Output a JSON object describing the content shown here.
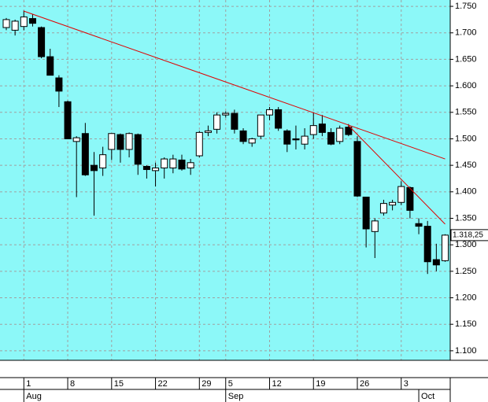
{
  "chart_data": {
    "type": "candlestick",
    "categories": [
      null,
      null,
      "1",
      null,
      null,
      null,
      null,
      "8",
      null,
      null,
      null,
      null,
      "15",
      null,
      null,
      null,
      null,
      "22",
      null,
      null,
      null,
      null,
      "29",
      null,
      null,
      "5",
      null,
      null,
      null,
      null,
      "12",
      null,
      null,
      null,
      null,
      "19",
      null,
      null,
      null,
      null,
      "26",
      null,
      null,
      null,
      null,
      "3",
      null,
      null,
      null,
      null,
      null
    ],
    "months": [
      {
        "label": "Aug",
        "start": 2
      },
      {
        "label": "Sep",
        "start": 25
      },
      {
        "label": "Oct",
        "start": 47
      }
    ],
    "series": [
      {
        "open": [
          1710,
          1705,
          1712,
          1727,
          1710,
          1655,
          1615,
          1570,
          1495,
          1510,
          1450,
          1445,
          1480,
          1508,
          1480,
          1508,
          1448,
          1440,
          1445,
          1445,
          1460,
          1445,
          1468,
          1512,
          1518,
          1545,
          1548,
          1515,
          1492,
          1505,
          1545,
          1555,
          1515,
          1500,
          1490,
          1508,
          1528,
          1512,
          1495,
          1522,
          1495,
          1390,
          1325,
          1360,
          1375,
          1380,
          1408,
          1340,
          1335,
          1272,
          1270
        ],
        "high": [
          1728,
          1725,
          1742,
          1735,
          1712,
          1670,
          1620,
          1572,
          1505,
          1530,
          1475,
          1485,
          1510,
          1510,
          1512,
          1510,
          1450,
          1455,
          1465,
          1470,
          1470,
          1462,
          1515,
          1525,
          1550,
          1552,
          1555,
          1520,
          1502,
          1545,
          1560,
          1560,
          1518,
          1525,
          1520,
          1550,
          1545,
          1520,
          1525,
          1528,
          1505,
          1390,
          1350,
          1385,
          1385,
          1420,
          1410,
          1350,
          1345,
          1302,
          1320
        ],
        "low": [
          1705,
          1695,
          1705,
          1712,
          1652,
          1620,
          1560,
          1500,
          1390,
          1430,
          1355,
          1430,
          1460,
          1455,
          1465,
          1432,
          1425,
          1410,
          1425,
          1435,
          1440,
          1432,
          1465,
          1505,
          1510,
          1540,
          1510,
          1490,
          1485,
          1500,
          1535,
          1515,
          1475,
          1480,
          1480,
          1500,
          1505,
          1488,
          1490,
          1505,
          1390,
          1295,
          1275,
          1355,
          1365,
          1375,
          1350,
          1320,
          1245,
          1250,
          1268
        ],
        "close": [
          1725,
          1722,
          1730,
          1718,
          1655,
          1620,
          1590,
          1500,
          1502,
          1432,
          1440,
          1470,
          1510,
          1480,
          1510,
          1452,
          1442,
          1445,
          1462,
          1462,
          1443,
          1455,
          1512,
          1515,
          1545,
          1548,
          1518,
          1495,
          1500,
          1545,
          1555,
          1520,
          1490,
          1498,
          1505,
          1525,
          1512,
          1490,
          1520,
          1508,
          1392,
          1330,
          1345,
          1378,
          1380,
          1410,
          1365,
          1335,
          1268,
          1262,
          1318.25
        ]
      }
    ],
    "trendlines": [
      {
        "x": [
          2,
          50
        ],
        "values": [
          1741,
          1462
        ]
      },
      {
        "x": [
          39,
          50
        ],
        "values": [
          1525,
          1339
        ]
      }
    ],
    "trendline_color": "#e00000",
    "last_value": {
      "value": 1318.25,
      "label": "1.318,25"
    },
    "ylim": [
      1082,
      1762
    ],
    "yticks": [
      {
        "value": 1750,
        "label": "1.750"
      },
      {
        "value": 1700,
        "label": "1.700"
      },
      {
        "value": 1650,
        "label": "1.650"
      },
      {
        "value": 1600,
        "label": "1.600"
      },
      {
        "value": 1550,
        "label": "1.550"
      },
      {
        "value": 1500,
        "label": "1.500"
      },
      {
        "value": 1450,
        "label": "1.450"
      },
      {
        "value": 1400,
        "label": "1.400"
      },
      {
        "value": 1350,
        "label": "1.350"
      },
      {
        "value": 1300,
        "label": "1.300"
      },
      {
        "value": 1250,
        "label": "1.250"
      },
      {
        "value": 1200,
        "label": "1.200"
      },
      {
        "value": 1150,
        "label": "1.150"
      },
      {
        "value": 1100,
        "label": "1.100"
      }
    ],
    "grid": true,
    "background": "#8cf8f8"
  }
}
